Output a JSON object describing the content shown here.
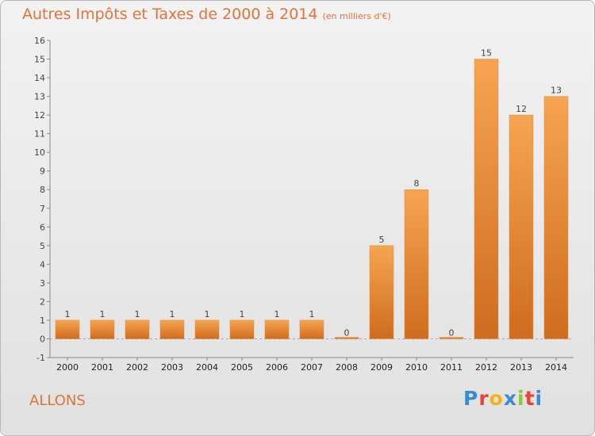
{
  "title": "Autres Impôts et Taxes de 2000 à 2014",
  "subtitle": "(en milliers d'€)",
  "commune": "ALLONS",
  "logo": {
    "text": "Proxiti",
    "colors": [
      "#3a8bd0",
      "#e8423a",
      "#f2b21c",
      "#3a8bd0",
      "#8cc63f",
      "#e8423a",
      "#3a8bd0"
    ]
  },
  "colors": {
    "title": "#e0743a",
    "bar_light": "#f6a552",
    "bar_dark": "#cf6c1d"
  },
  "chart_data": {
    "type": "bar",
    "title": "Autres Impôts et Taxes de 2000 à 2014",
    "subtitle": "(en milliers d'€)",
    "categories": [
      "2000",
      "2001",
      "2002",
      "2003",
      "2004",
      "2005",
      "2006",
      "2007",
      "2008",
      "2009",
      "2010",
      "2011",
      "2012",
      "2013",
      "2014"
    ],
    "values": [
      1,
      1,
      1,
      1,
      1,
      1,
      1,
      1,
      0,
      5,
      8,
      0,
      15,
      12,
      13
    ],
    "data_labels": [
      "1",
      "1",
      "1",
      "1",
      "1",
      "1",
      "1",
      "1",
      "0",
      "5",
      "8",
      "0",
      "15",
      "12",
      "13"
    ],
    "ylim": [
      -1,
      16
    ],
    "yticks": [
      -1,
      0,
      1,
      2,
      3,
      4,
      5,
      6,
      7,
      8,
      9,
      10,
      11,
      12,
      13,
      14,
      15,
      16
    ],
    "grid": false,
    "legend": "none"
  }
}
